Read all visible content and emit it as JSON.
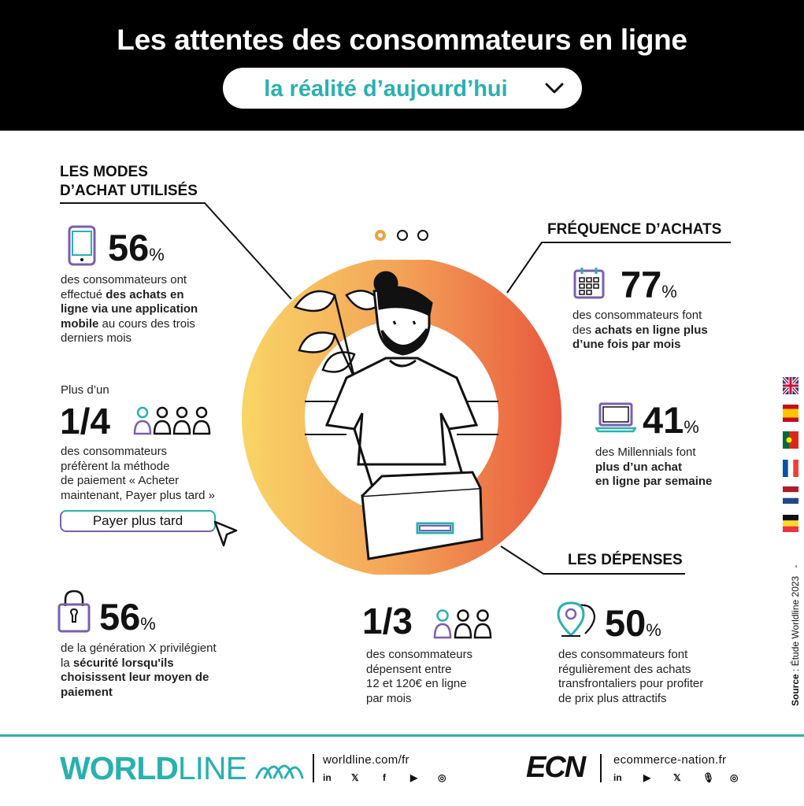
{
  "header": {
    "title": "Les attentes des consommateurs en ligne",
    "dropdown_label": "la réalité d’aujourd’hui"
  },
  "colors": {
    "accent": "#2ab0b0",
    "purple": "#7a5fb0",
    "gradient_start": "#f9d566",
    "gradient_end": "#e8573d"
  },
  "sections": {
    "modes": {
      "heading_line1": "LES MODES",
      "heading_line2": "D’ACHAT UTILISÉS"
    },
    "frequence": {
      "heading": "FRÉQUENCE D’ACHATS"
    },
    "depenses": {
      "heading": "LES DÉPENSES"
    }
  },
  "stats": {
    "app": {
      "value": "56",
      "unit": "%",
      "line1": "des consommateurs ont",
      "line2_plain": "effectué ",
      "line2_bold": "des achats en",
      "line3_bold": "ligne via une application",
      "line4_bold": "mobile",
      "line4_plain": " au cours des trois",
      "line5": "derniers mois",
      "icon": "smartphone-icon"
    },
    "bnpl": {
      "prefix": "Plus d’un",
      "value": "1/4",
      "line1": "des consommateurs",
      "line2": "préfèrent la méthode",
      "line3": "de paiement « Acheter",
      "line4": "maintenant, Payer plus tard »",
      "button": "Payer plus tard",
      "icon": "people-icon"
    },
    "security": {
      "value": "56",
      "unit": "%",
      "line1": "de la génération X privilégient",
      "line2_plain": "la ",
      "line2_bold": "sécurité lorsqu'ils",
      "line3_bold": "choisissent leur moyen de",
      "line4_bold": "paiement",
      "icon": "padlock-icon"
    },
    "monthly": {
      "value": "77",
      "unit": "%",
      "line1": "des consommateurs font",
      "line2_plain": "des ",
      "line2_bold": "achats en ligne plus",
      "line3_bold": "d’une fois par mois",
      "icon": "calendar-icon"
    },
    "millennials": {
      "value": "41",
      "unit": "%",
      "line1": "des Millennials font",
      "line2_bold": "plus d’un achat",
      "line3_bold": "en ligne par semaine",
      "icon": "laptop-icon"
    },
    "spend": {
      "value": "1/3",
      "line1": "des consommateurs",
      "line2": "dépensent entre",
      "line3": "12 et 120€ en ligne",
      "line4": "par mois",
      "icon": "people-icon"
    },
    "crossborder": {
      "value": "50",
      "unit": "%",
      "line1": "des consommateurs font",
      "line2": "régulièrement des achats",
      "line3": "transfrontaliers pour profiter",
      "line4": "de prix plus attractifs",
      "icon": "location-pin-icon"
    }
  },
  "footer": {
    "worldline_logo_bold": "WORLD",
    "worldline_logo_light": "LINE",
    "worldline_url": "worldline.com/fr",
    "ecn_logo": "ECN",
    "ecn_url": "ecommerce-nation.fr",
    "social_icons": [
      "linkedin-icon",
      "x-icon",
      "facebook-icon",
      "youtube-icon",
      "instagram-icon"
    ],
    "ecn_social_icons": [
      "linkedin-icon",
      "youtube-icon",
      "x-icon",
      "podcast-icon",
      "instagram-icon"
    ]
  },
  "source": {
    "label": "Source",
    "text": " : Étude Worldline 2023",
    "dash": "-"
  },
  "languages": [
    "en",
    "es",
    "pt",
    "fr",
    "nl",
    "be",
    "de"
  ]
}
